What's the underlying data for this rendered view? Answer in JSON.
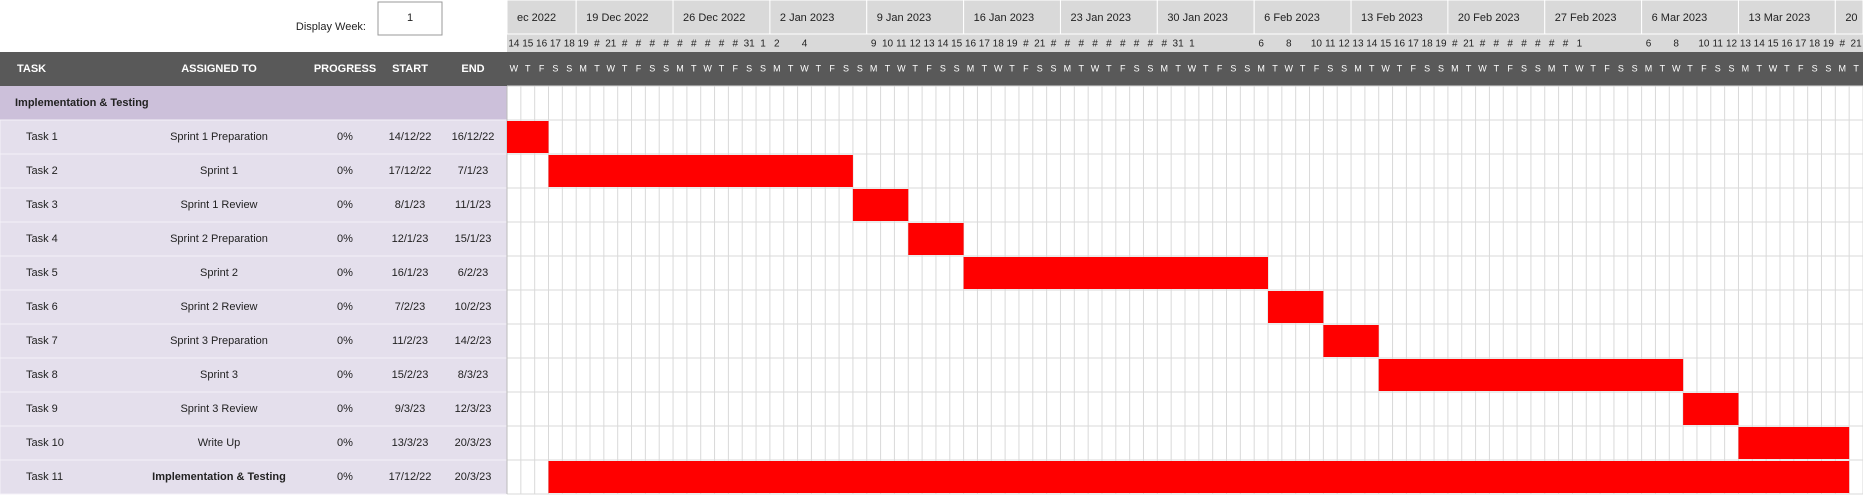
{
  "display_week": {
    "label": "Display Week:",
    "value": "1"
  },
  "columns": [
    "TASK",
    "ASSIGNED TO",
    "PROGRESS",
    "START",
    "END"
  ],
  "section": "Implementation & Testing",
  "rows": [
    {
      "task": "Task 1",
      "assigned": "Sprint 1 Preparation",
      "progress": "0%",
      "start": "14/12/22",
      "end": "16/12/22"
    },
    {
      "task": "Task 2",
      "assigned": "Sprint 1",
      "progress": "0%",
      "start": "17/12/22",
      "end": "7/1/23"
    },
    {
      "task": "Task 3",
      "assigned": "Sprint 1 Review",
      "progress": "0%",
      "start": "8/1/23",
      "end": "11/1/23"
    },
    {
      "task": "Task 4",
      "assigned": "Sprint 2 Preparation",
      "progress": "0%",
      "start": "12/1/23",
      "end": "15/1/23"
    },
    {
      "task": "Task 5",
      "assigned": "Sprint 2",
      "progress": "0%",
      "start": "16/1/23",
      "end": "6/2/23"
    },
    {
      "task": "Task 6",
      "assigned": "Sprint 2 Review",
      "progress": "0%",
      "start": "7/2/23",
      "end": "10/2/23"
    },
    {
      "task": "Task 7",
      "assigned": "Sprint 3 Preparation",
      "progress": "0%",
      "start": "11/2/23",
      "end": "14/2/23"
    },
    {
      "task": "Task 8",
      "assigned": "Sprint 3",
      "progress": "0%",
      "start": "15/2/23",
      "end": "8/3/23"
    },
    {
      "task": "Task 9",
      "assigned": "Sprint 3 Review",
      "progress": "0%",
      "start": "9/3/23",
      "end": "12/3/23"
    },
    {
      "task": "Task 10",
      "assigned": "Write Up",
      "progress": "0%",
      "start": "13/3/23",
      "end": "20/3/23"
    },
    {
      "task": "Task 11",
      "assigned": "Implementation & Testing",
      "progress": "0%",
      "start": "17/12/22",
      "end": "20/3/23"
    }
  ],
  "weeks": [
    "ec 2022",
    "19 Dec 2022",
    "26 Dec 2022",
    "2 Jan 2023",
    "9 Jan 2023",
    "16 Jan 2023",
    "23 Jan 2023",
    "30 Jan 2023",
    "6 Feb 2023",
    "13 Feb 2023",
    "20 Feb 2023",
    "27 Feb 2023",
    "6 Mar 2023",
    "13 Mar 2023",
    "20"
  ],
  "days": [
    "14",
    "15",
    "16",
    "17",
    "18",
    "19",
    "#",
    "21",
    "#",
    "#",
    "#",
    "#",
    "#",
    "#",
    "#",
    "#",
    "#",
    "31",
    "1",
    "2",
    "",
    "4",
    "",
    "",
    "",
    "",
    "9",
    "10",
    "11",
    "12",
    "13",
    "14",
    "15",
    "16",
    "17",
    "18",
    "19",
    "#",
    "21",
    "#",
    "#",
    "#",
    "#",
    "#",
    "#",
    "#",
    "#",
    "#",
    "31",
    "1",
    "",
    "",
    "",
    "",
    "6",
    "",
    "8",
    "",
    "10",
    "11",
    "12",
    "13",
    "14",
    "15",
    "16",
    "17",
    "18",
    "19",
    "#",
    "21",
    "#",
    "#",
    "#",
    "#",
    "#",
    "#",
    "#",
    "1",
    "",
    "",
    "",
    "",
    "6",
    "",
    "8",
    "",
    "10",
    "11",
    "12",
    "13",
    "14",
    "15",
    "16",
    "17",
    "18",
    "19",
    "#",
    "21"
  ],
  "weekdays": [
    "W",
    "T",
    "F",
    "S",
    "S",
    "M",
    "T",
    "W",
    "T",
    "F",
    "S",
    "S",
    "M",
    "T",
    "W",
    "T",
    "F",
    "S",
    "S",
    "M",
    "T",
    "W",
    "T",
    "F",
    "S",
    "S",
    "M",
    "T",
    "W",
    "T",
    "F",
    "S",
    "S",
    "M",
    "T",
    "W",
    "T",
    "F",
    "S",
    "S",
    "M",
    "T",
    "W",
    "T",
    "F",
    "S",
    "S",
    "M",
    "T",
    "W",
    "T",
    "F",
    "S",
    "S",
    "M",
    "T",
    "W",
    "T",
    "F",
    "S",
    "S",
    "M",
    "T",
    "W",
    "T",
    "F",
    "S",
    "S",
    "M",
    "T",
    "W",
    "T",
    "F",
    "S",
    "S",
    "M",
    "T",
    "W",
    "T",
    "F",
    "S",
    "S",
    "M",
    "T",
    "W",
    "T",
    "F",
    "S",
    "S",
    "M",
    "T",
    "W",
    "T",
    "F",
    "S",
    "S",
    "M",
    "T"
  ]
}
